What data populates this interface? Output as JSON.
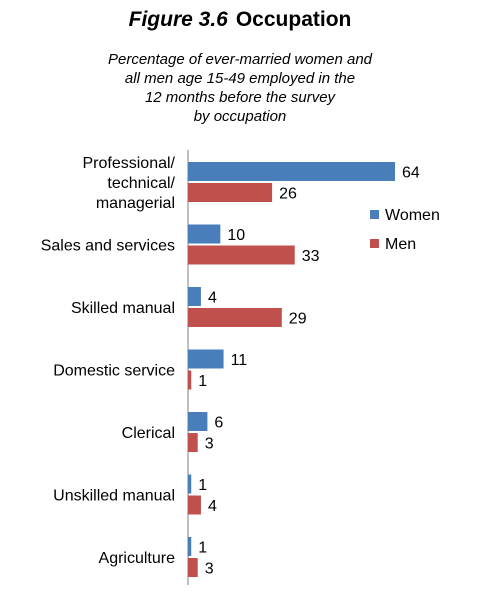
{
  "figure": {
    "number": "Figure 3.6",
    "title": "Occupation",
    "subtitle_lines": [
      "Percentage of ever-married women and",
      "all men age 15-49 employed in the",
      "12 months before the survey",
      "by occupation"
    ]
  },
  "chart_data": {
    "type": "bar",
    "orientation": "horizontal",
    "title": "Occupation",
    "subtitle": "Percentage of ever-married women and all men age 15-49 employed in the 12 months before the survey by occupation",
    "categories": [
      [
        "Professional/",
        "technical/",
        "managerial"
      ],
      [
        "Sales and services"
      ],
      [
        "Skilled manual"
      ],
      [
        "Domestic service"
      ],
      [
        "Clerical"
      ],
      [
        "Unskilled manual"
      ],
      [
        "Agriculture"
      ]
    ],
    "series": [
      {
        "name": "Women",
        "color": "#4a7ebb",
        "values": [
          64,
          10,
          4,
          11,
          6,
          1,
          1
        ]
      },
      {
        "name": "Men",
        "color": "#c0504d",
        "values": [
          26,
          33,
          29,
          1,
          3,
          4,
          3
        ]
      }
    ],
    "xlim": [
      0,
      64
    ],
    "data_labels": true,
    "legend_position": "right",
    "grid": false
  }
}
